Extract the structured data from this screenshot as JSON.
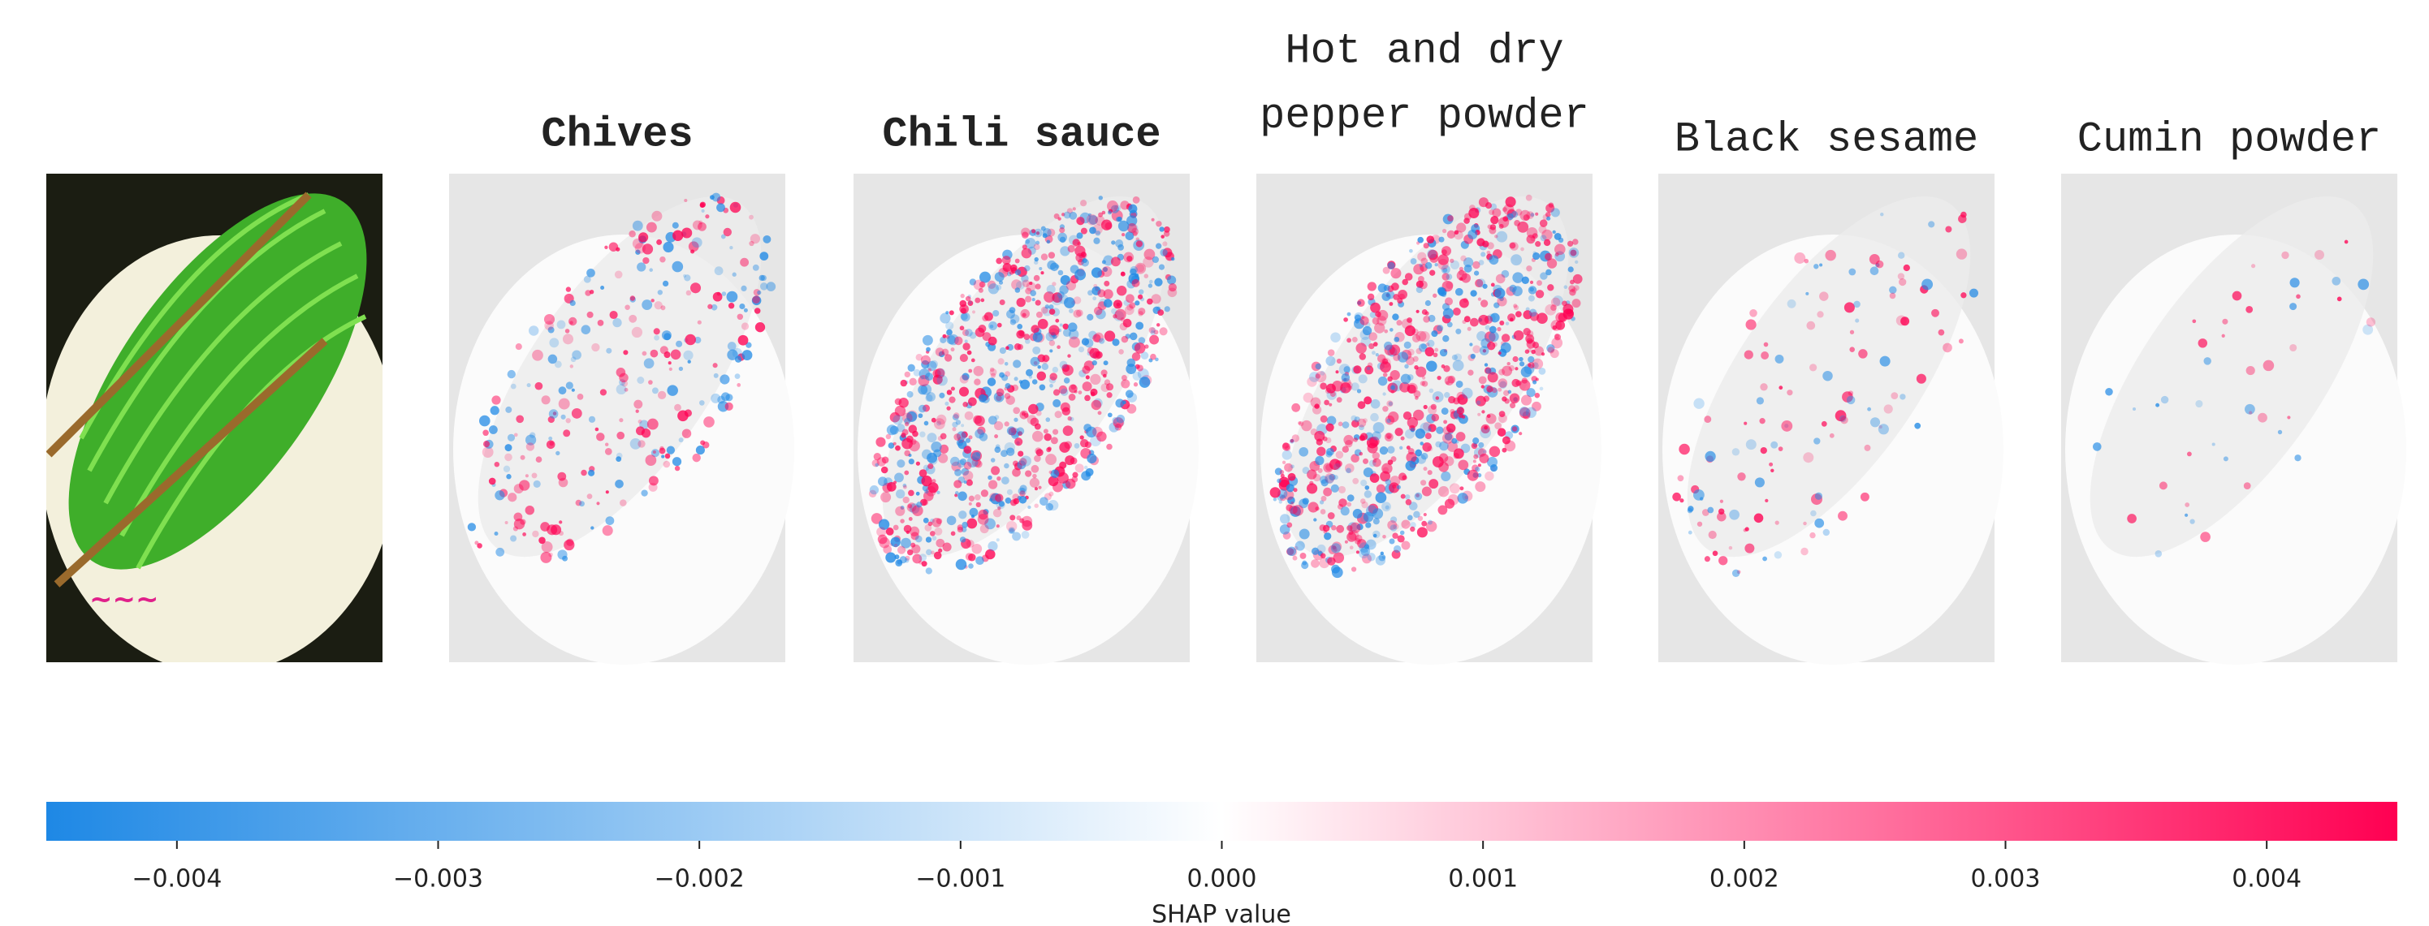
{
  "chart_data": {
    "type": "shap-image",
    "panels": [
      {
        "lines": [],
        "bold": false
      },
      {
        "lines": [
          "Chives"
        ],
        "bold": true
      },
      {
        "lines": [
          "Chili sauce"
        ],
        "bold": true
      },
      {
        "lines": [
          "Hot and dry",
          "pepper powder"
        ],
        "bold": false
      },
      {
        "lines": [
          "Black sesame"
        ],
        "bold": false
      },
      {
        "lines": [
          "Cumin powder"
        ],
        "bold": false
      }
    ],
    "colorbar": {
      "label": "SHAP value",
      "xlim": [
        -0.0045,
        0.0045
      ],
      "xticks": [
        {
          "value": -0.004,
          "label": "−0.004"
        },
        {
          "value": -0.003,
          "label": "−0.003"
        },
        {
          "value": -0.002,
          "label": "−0.002"
        },
        {
          "value": -0.001,
          "label": "−0.001"
        },
        {
          "value": 0,
          "label": "0.000"
        },
        0.001,
        0.002,
        0.003,
        0.004
      ],
      "colors": [
        "#1e88e5",
        "#ffffff",
        "#ff0052"
      ]
    }
  }
}
